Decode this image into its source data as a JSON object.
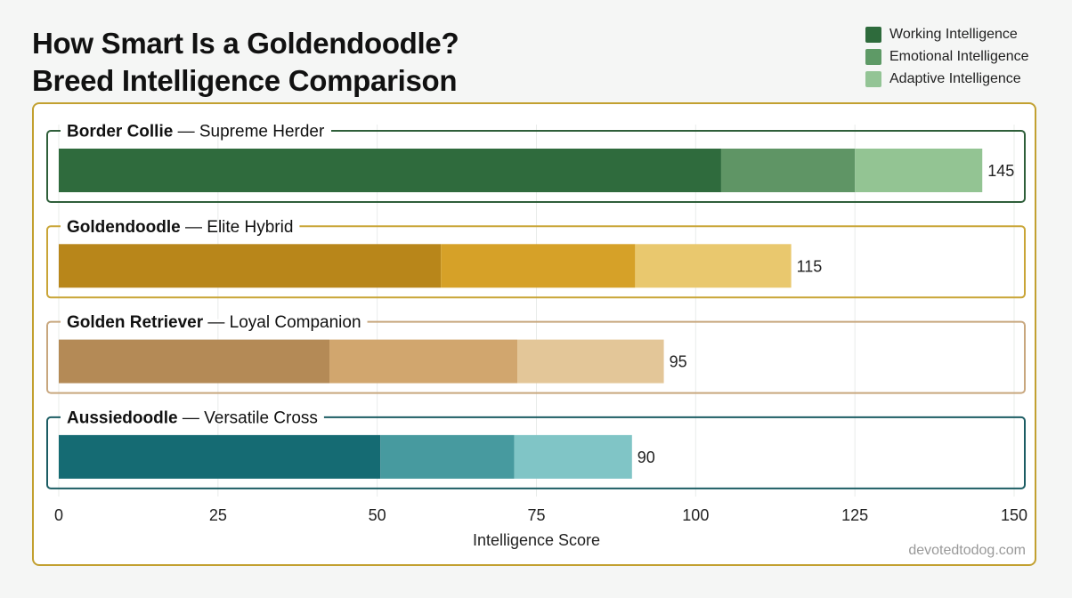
{
  "title_line1": "How Smart Is a Goldendoodle?",
  "title_line2": "Breed Intelligence Comparison",
  "legend": [
    {
      "label": "Working Intelligence",
      "color": "#2e6b3c"
    },
    {
      "label": "Emotional Intelligence",
      "color": "#5e9a66"
    },
    {
      "label": "Adaptive Intelligence",
      "color": "#93c495"
    }
  ],
  "footer": "devotedtodog.com",
  "chart_data": {
    "type": "bar",
    "orientation": "horizontal",
    "stacked": true,
    "xlabel": "Intelligence Score",
    "xlim": [
      0,
      150
    ],
    "xticks": [
      0,
      25,
      50,
      75,
      100,
      125,
      150
    ],
    "grid": true,
    "legend_position": "top-right",
    "categories": [
      {
        "name": "Border Collie",
        "subtitle": "Supreme Herder",
        "total": 145,
        "values": [
          104,
          21,
          20
        ],
        "colors": [
          "#2f6b3d",
          "#5f9565",
          "#93c493"
        ],
        "frame_color": "#2f5f3a"
      },
      {
        "name": "Goldendoodle",
        "subtitle": "Elite Hybrid",
        "total": 115,
        "values": [
          60,
          30.5,
          24.5
        ],
        "colors": [
          "#b8861a",
          "#d6a128",
          "#e9c86e"
        ],
        "frame_color": "#c9a537"
      },
      {
        "name": "Golden Retriever",
        "subtitle": "Loyal Companion",
        "total": 95,
        "values": [
          42.5,
          29.5,
          23
        ],
        "colors": [
          "#b48a56",
          "#d1a66e",
          "#e3c698"
        ],
        "frame_color": "#c8a77e"
      },
      {
        "name": "Aussiedoodle",
        "subtitle": "Versatile Cross",
        "total": 90,
        "values": [
          50.5,
          21,
          18.5
        ],
        "colors": [
          "#156b73",
          "#479a9f",
          "#80c5c6"
        ],
        "frame_color": "#1c5d63"
      }
    ]
  }
}
